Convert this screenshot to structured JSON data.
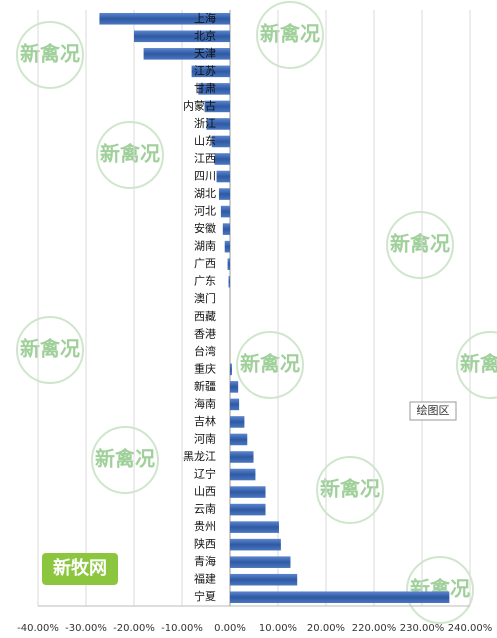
{
  "chart_data": {
    "type": "bar",
    "orientation": "horizontal",
    "categories": [
      "上海",
      "北京",
      "天津",
      "江苏",
      "甘肃",
      "内蒙古",
      "浙江",
      "山东",
      "江西",
      "四川",
      "湖北",
      "河北",
      "安徽",
      "湖南",
      "广西",
      "广东",
      "澳门",
      "西藏",
      "香港",
      "台湾",
      "重庆",
      "新疆",
      "海南",
      "吉林",
      "河南",
      "黑龙江",
      "辽宁",
      "山西",
      "云南",
      "贵州",
      "陕西",
      "青海",
      "福建",
      "宁夏"
    ],
    "values": [
      -27.2,
      -20,
      -18,
      -8,
      -6.6,
      -5.3,
      -4.9,
      -3.8,
      -3.2,
      -2.8,
      -2.3,
      -1.9,
      -1.5,
      -1.1,
      -0.5,
      -0.3,
      0,
      0,
      0,
      0,
      0.4,
      1.7,
      1.9,
      3.0,
      3.6,
      4.9,
      5.3,
      7.4,
      7.4,
      10.2,
      10.6,
      12.6,
      14.0,
      235.7
    ],
    "color": "#3d69b3",
    "xlim": [
      -40,
      240
    ],
    "xticks": [
      {
        "value": -40,
        "label": "-40.00%"
      },
      {
        "value": -30,
        "label": "-30.00%"
      },
      {
        "value": -20,
        "label": "-20.00%"
      },
      {
        "value": -10,
        "label": "-10.00%"
      },
      {
        "value": 0,
        "label": "0.00%"
      },
      {
        "value": 10,
        "label": "10.00%"
      },
      {
        "value": 20,
        "label": "20.00%"
      },
      {
        "value": 220,
        "label": "220.00%"
      },
      {
        "value": 230,
        "label": "230.00%"
      },
      {
        "value": 240,
        "label": "240.00%"
      }
    ],
    "axis_broken": true,
    "grid": true,
    "annotation": "绘图区",
    "watermark": "新禽况",
    "logo": "新牧网"
  }
}
